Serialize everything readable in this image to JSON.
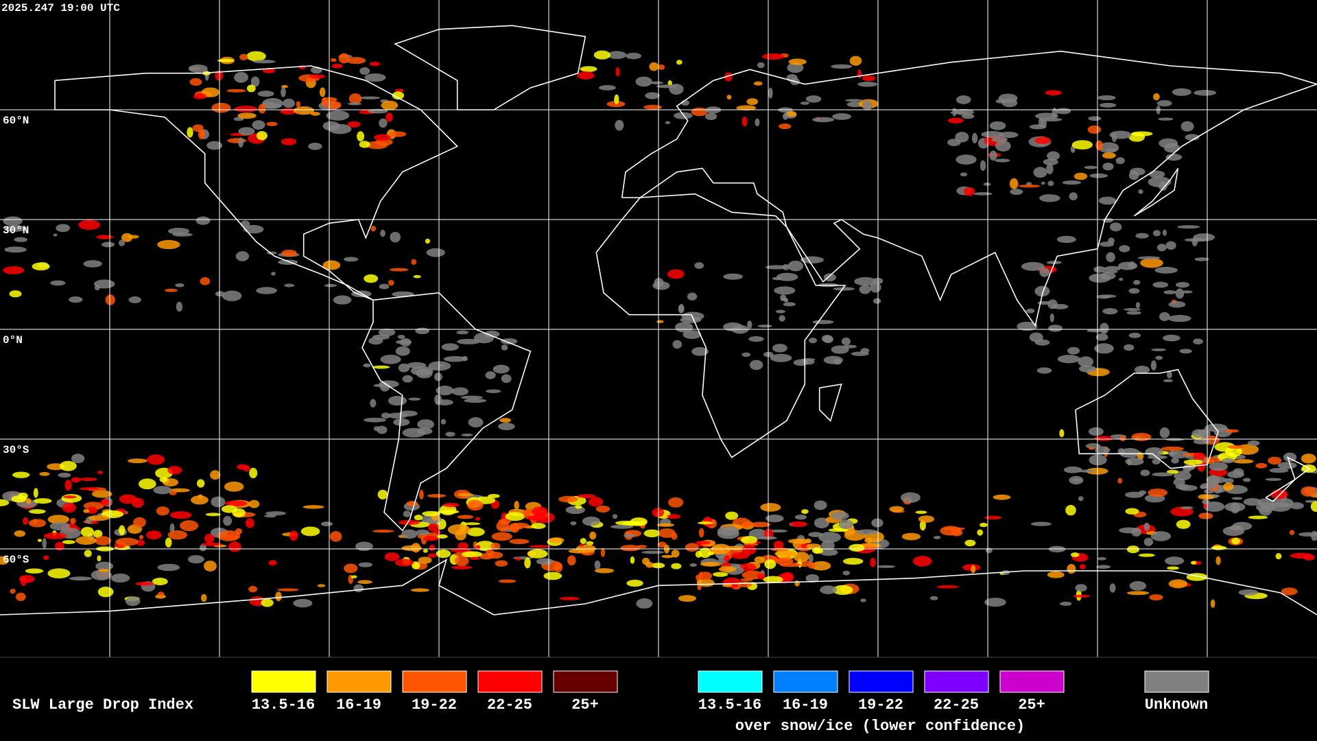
{
  "timestamp": "2025.247 19:00 UTC",
  "latitude_labels": [
    "60°N",
    "30°N",
    "0°N",
    "30°S",
    "60°S"
  ],
  "legend": {
    "title": "SLW Large Drop Index",
    "liquid": [
      {
        "label": "13.5-16",
        "color": "#ffff00"
      },
      {
        "label": "16-19",
        "color": "#ff9900"
      },
      {
        "label": "19-22",
        "color": "#ff5500"
      },
      {
        "label": "22-25",
        "color": "#ff0000"
      },
      {
        "label": "25+",
        "color": "#660000"
      }
    ],
    "snow_ice": [
      {
        "label": "13.5-16",
        "color": "#00ffff"
      },
      {
        "label": "16-19",
        "color": "#0080ff"
      },
      {
        "label": "19-22",
        "color": "#0000ff"
      },
      {
        "label": "22-25",
        "color": "#8000ff"
      },
      {
        "label": "25+",
        "color": "#cc00cc"
      }
    ],
    "snow_ice_note": "over snow/ice (lower confidence)",
    "unknown": {
      "label": "Unknown",
      "color": "#808080"
    }
  }
}
